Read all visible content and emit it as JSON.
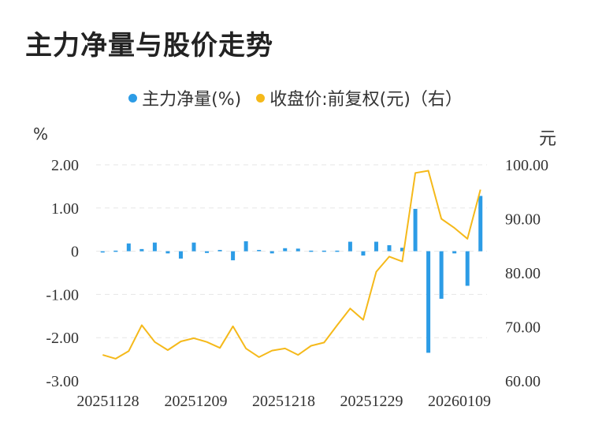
{
  "title": "主力净量与股价走势",
  "legend": [
    {
      "label": "主力净量(%)",
      "color": "#2c9ce6"
    },
    {
      "label": "收盘价:前复权(元)（右）",
      "color": "#f5b91a"
    }
  ],
  "units": {
    "left": "%",
    "right": "元"
  },
  "chart_data": {
    "type": "bar",
    "x_tick_labels": [
      "20251128",
      "20251209",
      "20251218",
      "20251229",
      "20260109"
    ],
    "left_axis": {
      "ylim": [
        -3,
        2
      ],
      "ticks": [
        "2.00",
        "1.00",
        "0",
        "-1.00",
        "-2.00",
        "-3.00"
      ]
    },
    "right_axis": {
      "ylim": [
        60,
        100
      ],
      "ticks": [
        "100.00",
        "90.00",
        "80.00",
        "70.00",
        "60.00"
      ]
    },
    "grid": true,
    "legend_position": "top-center",
    "series": [
      {
        "name": "主力净量(%)",
        "type": "bar",
        "axis": "left",
        "values": [
          -0.03,
          -0.02,
          0.18,
          0.05,
          0.2,
          -0.05,
          -0.17,
          0.2,
          -0.04,
          0.03,
          -0.21,
          0.23,
          0.03,
          -0.05,
          0.07,
          0.06,
          0.0,
          -0.01,
          0.01,
          0.22,
          -0.1,
          0.22,
          0.14,
          0.08,
          0.98,
          -2.35,
          -1.1,
          -0.05,
          -0.8,
          1.28
        ]
      },
      {
        "name": "收盘价:前复权(元)（右）",
        "type": "line",
        "axis": "right",
        "values": [
          64.8,
          64.1,
          65.5,
          70.3,
          67.2,
          65.7,
          67.3,
          67.9,
          67.2,
          66.1,
          70.1,
          66.0,
          64.4,
          65.6,
          66.0,
          64.8,
          66.5,
          67.1,
          70.3,
          73.4,
          71.3,
          80.2,
          83.0,
          82.1,
          98.5,
          98.9,
          90.0,
          88.3,
          86.3,
          95.4
        ]
      }
    ]
  }
}
